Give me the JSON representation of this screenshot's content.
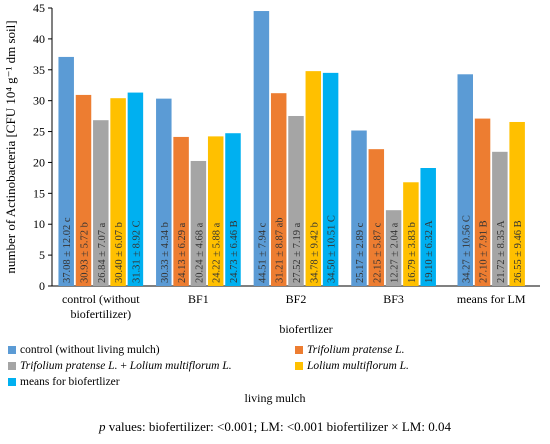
{
  "chart_data": {
    "type": "bar",
    "title": "",
    "ylabel": "number of Actinobacteria [CFU 10⁴ g⁻¹ dm soil]",
    "xlabel": "biofertlizer",
    "ylim": [
      0,
      45
    ],
    "yticks": [
      0,
      5,
      10,
      15,
      20,
      25,
      30,
      35,
      40,
      45
    ],
    "grid": false,
    "legend_placement": "bottom",
    "categories": [
      "control (without biofertilizer)",
      "BF1",
      "BF2",
      "BF3",
      "means for LM"
    ],
    "category_lines": [
      [
        "control (without",
        "biofertilizer)"
      ],
      [
        "BF1"
      ],
      [
        "BF2"
      ],
      [
        "BF3"
      ],
      [
        "means for LM"
      ]
    ],
    "series": [
      {
        "name": "control (without living mulch)",
        "italic": false,
        "color": "#5b9bd5",
        "values": [
          37.08,
          30.33,
          44.51,
          25.17,
          34.27
        ],
        "labels": [
          "37.08 ± 12.02 c",
          "30.33 ± 4.34 b",
          "44.51 ± 7.94 c",
          "25.17 ± 2.89 c",
          "34.27 ± 10.56 C"
        ]
      },
      {
        "name": "Trifolium pratense L.",
        "italic": true,
        "color": "#ed7d31",
        "values": [
          30.93,
          24.13,
          31.21,
          22.15,
          27.1
        ],
        "labels": [
          "30.93 ± 5.72 b",
          "24.13 ± 6.29 a",
          "31.21 ± 8.87 ab",
          "22.15 ± 5.87 c",
          "27.10 ± 7.91 B"
        ]
      },
      {
        "name": "Trifolium pratense L. + Lolium multiflorum L.",
        "italic": true,
        "color": "#a5a5a5",
        "values": [
          26.84,
          20.24,
          27.52,
          12.27,
          21.72
        ],
        "labels": [
          "26.84 ± 7.07 a",
          "20.24 ± 4.68 a",
          "27.52 ± 7.19 a",
          "12.27 ± 2.04 a",
          "21.72 ± 8.35 A"
        ]
      },
      {
        "name": "Lolium multiflorum L.",
        "italic": true,
        "color": "#ffc000",
        "values": [
          30.4,
          24.22,
          34.78,
          16.79,
          26.55
        ],
        "labels": [
          "30.40 ± 6.07 b",
          "24.22 ± 5.88 a",
          "34.78 ± 9.42 b",
          "16.79 ± 3.83 b",
          "26.55 ± 9.46 B"
        ]
      },
      {
        "name": "means for biofertlizer",
        "italic": false,
        "color": "#00b0f0",
        "values": [
          31.31,
          24.73,
          34.5,
          19.1,
          null
        ],
        "labels": [
          "31.31 ± 8.92 C",
          "24.73 ± 6.46 B",
          "34.50 ± 10.51 C",
          "19.10 ± 6.32 A",
          ""
        ]
      }
    ]
  },
  "legend": {
    "title": "living  mulch",
    "items": [
      {
        "text": "control (without living mulch)",
        "plain": "",
        "color": "#5b9bd5"
      },
      {
        "text": "Trifolium pratense L.",
        "plain": "",
        "color": "#ed7d31"
      },
      {
        "text": "Trifolium pratense L.",
        "plain": " + ",
        "text2": "Lolium multiflorum L.",
        "color": "#a5a5a5"
      },
      {
        "text": "Lolium multiflorum L.",
        "plain": "",
        "color": "#ffc000"
      },
      {
        "text": "means for biofertlizer",
        "plain": "",
        "color": "#00b0f0"
      }
    ]
  },
  "footnote": {
    "p_label": "p",
    "text": " values: biofertilizer: <0.001; LM: <0.001 biofertilizer × LM:  0.04"
  }
}
